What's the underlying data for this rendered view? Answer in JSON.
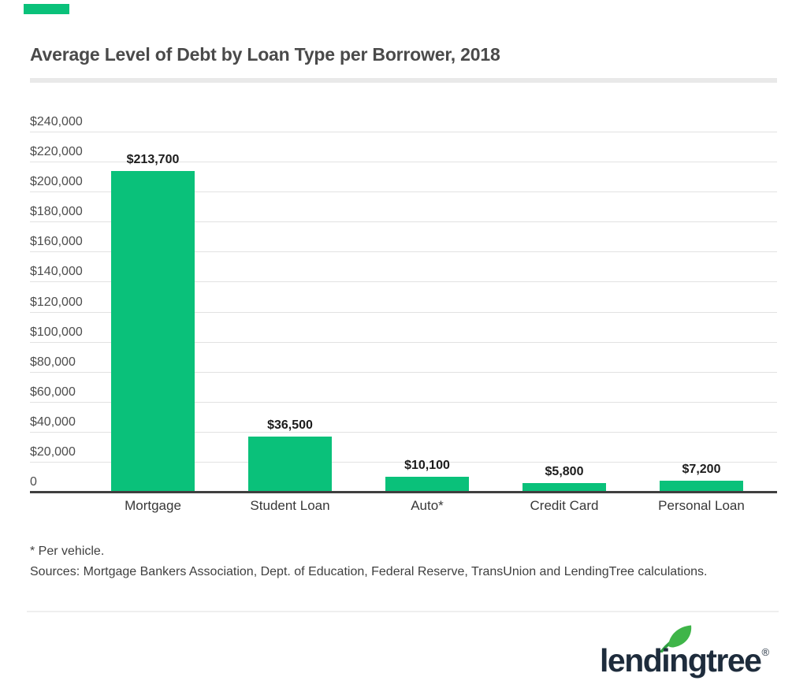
{
  "header": {
    "title": "Average Level of Debt by Loan Type per Borrower, 2018"
  },
  "chart_data": {
    "type": "bar",
    "title": "Average Level of Debt by Loan Type per Borrower, 2018",
    "categories": [
      "Mortgage",
      "Student Loan",
      "Auto*",
      "Credit Card",
      "Personal Loan"
    ],
    "values": [
      213700,
      36500,
      10100,
      5800,
      7200
    ],
    "value_labels": [
      "$213,700",
      "$36,500",
      "$10,100",
      "$5,800",
      "$7,200"
    ],
    "xlabel": "",
    "ylabel": "",
    "ylim": [
      0,
      240000
    ],
    "grid": true,
    "legend": false,
    "bar_color": "#0ac17a",
    "y_ticks": [
      {
        "label": "$240,000",
        "value": 240000
      },
      {
        "label": "$220,000",
        "value": 220000
      },
      {
        "label": "$200,000",
        "value": 200000
      },
      {
        "label": "$180,000",
        "value": 180000
      },
      {
        "label": "$160,000",
        "value": 160000
      },
      {
        "label": "$140,000",
        "value": 140000
      },
      {
        "label": "$120,000",
        "value": 120000
      },
      {
        "label": "$100,000",
        "value": 100000
      },
      {
        "label": "$80,000",
        "value": 80000
      },
      {
        "label": "$60,000",
        "value": 60000
      },
      {
        "label": "$40,000",
        "value": 40000
      },
      {
        "label": "$20,000",
        "value": 20000
      },
      {
        "label": "0",
        "value": 0
      }
    ]
  },
  "footnotes": {
    "line1": "* Per vehicle.",
    "line2": "Sources: Mortgage Bankers Association, Dept. of Education, Federal Reserve, TransUnion and LendingTree calculations."
  },
  "logo": {
    "text": "lendingtree",
    "registered": "®"
  },
  "colors": {
    "bar_green": "#0ac17a",
    "leaf_green": "#3fb549",
    "leaf_stem_green": "#2f9e41",
    "logo_navy": "#1e2c3c",
    "title_gray": "#4a4a4a"
  }
}
